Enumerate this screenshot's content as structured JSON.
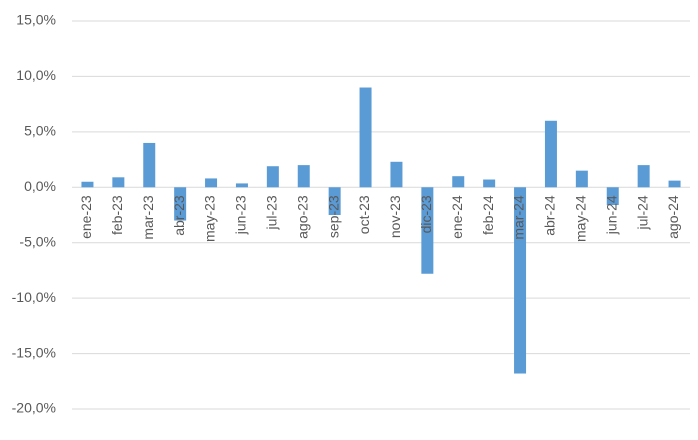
{
  "chart_data": {
    "type": "bar",
    "categories": [
      "ene-23",
      "feb-23",
      "mar-23",
      "abr-23",
      "may-23",
      "jun-23",
      "jul-23",
      "ago-23",
      "sep-23",
      "oct-23",
      "nov-23",
      "dic-23",
      "ene-24",
      "feb-24",
      "mar-24",
      "abr-24",
      "may-24",
      "jun-24",
      "jul-24",
      "ago-24"
    ],
    "values": [
      0.5,
      0.9,
      4.0,
      -3.0,
      0.8,
      0.35,
      1.9,
      2.0,
      -2.5,
      9.0,
      2.3,
      -7.8,
      1.0,
      0.7,
      -16.8,
      6.0,
      1.5,
      -1.6,
      2.0,
      0.6
    ],
    "color": "#5b9bd5",
    "ylim": [
      -20,
      15
    ],
    "yticks": [
      {
        "value": -20,
        "label": "-20,0%"
      },
      {
        "value": -15,
        "label": "-15,0%"
      },
      {
        "value": -10,
        "label": "-10,0%"
      },
      {
        "value": -5,
        "label": "-5,0%"
      },
      {
        "value": 0,
        "label": "0,0%"
      },
      {
        "value": 5,
        "label": "5,0%"
      },
      {
        "value": 10,
        "label": "10,0%"
      },
      {
        "value": 15,
        "label": "15,0%"
      }
    ],
    "grid": true
  }
}
